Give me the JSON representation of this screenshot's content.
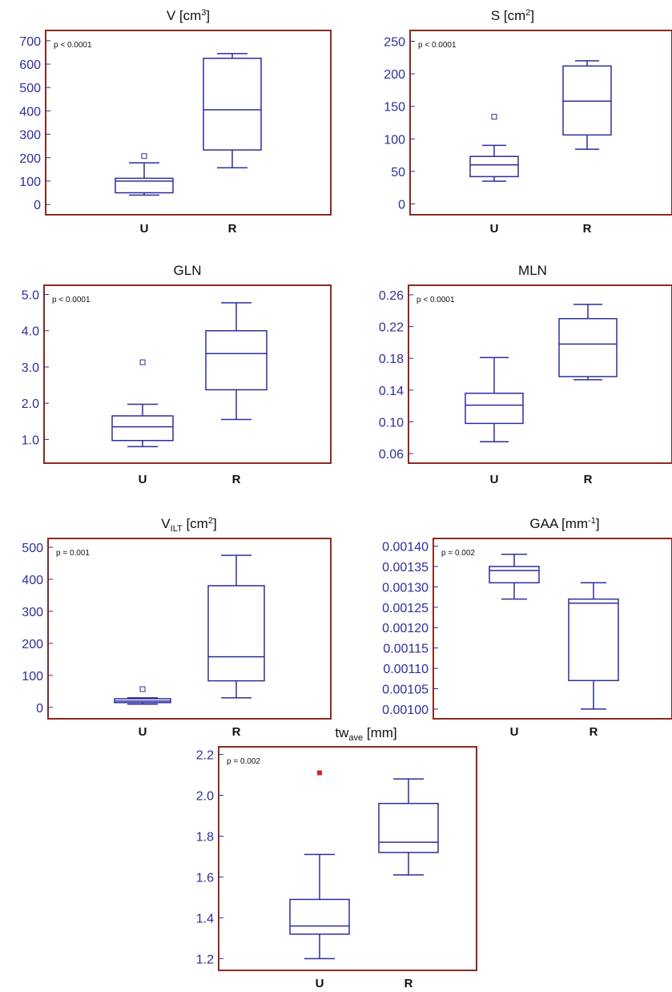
{
  "colors": {
    "frame": "#8b2a22",
    "box": "#2e2e9c",
    "axis_text": "#2e2e9c",
    "outlier_highlight": "#e02020"
  },
  "chart_data": [
    {
      "type": "box",
      "title": "V [cm³]",
      "title_main": "V [cm",
      "title_sup": "3",
      "title_tail": "]",
      "p_text": "p < 0.0001",
      "categories": [
        "U",
        "R"
      ],
      "ylim": [
        -20,
        720
      ],
      "yticks": [
        "0",
        "100",
        "200",
        "300",
        "400",
        "500",
        "600",
        "700"
      ],
      "ytick_values": [
        0,
        100,
        200,
        300,
        400,
        500,
        600,
        700
      ],
      "boxes": [
        {
          "category": "U",
          "min": 40,
          "q1": 50,
          "median": 100,
          "q3": 112,
          "max": 178,
          "outliers": [
            207
          ]
        },
        {
          "category": "R",
          "min": 157,
          "q1": 233,
          "median": 405,
          "q3": 625,
          "max": 645,
          "outliers": []
        }
      ]
    },
    {
      "type": "box",
      "title": "S [cm²]",
      "title_main": "S [cm",
      "title_sup": "2",
      "title_tail": "]",
      "p_text": "p < 0.0001",
      "categories": [
        "U",
        "R"
      ],
      "ylim": [
        -8,
        258
      ],
      "yticks": [
        "0",
        "50",
        "100",
        "150",
        "200",
        "250"
      ],
      "ytick_values": [
        0,
        50,
        100,
        150,
        200,
        250
      ],
      "boxes": [
        {
          "category": "U",
          "min": 35,
          "q1": 42,
          "median": 60,
          "q3": 73,
          "max": 90,
          "outliers": [
            134
          ]
        },
        {
          "category": "R",
          "min": 84,
          "q1": 106,
          "median": 158,
          "q3": 212,
          "max": 220,
          "outliers": []
        }
      ]
    },
    {
      "type": "box",
      "title": "GLN",
      "p_text": "p < 0.0001",
      "categories": [
        "U",
        "R"
      ],
      "ylim": [
        0.5,
        5.1
      ],
      "yticks": [
        "1.0",
        "2.0",
        "3.0",
        "4.0",
        "5.0"
      ],
      "ytick_values": [
        1.0,
        2.0,
        3.0,
        4.0,
        5.0
      ],
      "boxes": [
        {
          "category": "U",
          "min": 0.8,
          "q1": 0.97,
          "median": 1.35,
          "q3": 1.65,
          "max": 1.97,
          "outliers": [
            3.13
          ]
        },
        {
          "category": "R",
          "min": 1.55,
          "q1": 2.37,
          "median": 3.37,
          "q3": 4.0,
          "max": 4.77,
          "outliers": []
        }
      ]
    },
    {
      "type": "box",
      "title": "MLN",
      "p_text": "p < 0.0001",
      "categories": [
        "U",
        "R"
      ],
      "ylim": [
        0.055,
        0.265
      ],
      "yticks": [
        "0.06",
        "0.10",
        "0.14",
        "0.18",
        "0.22",
        "0.26"
      ],
      "ytick_values": [
        0.06,
        0.1,
        0.14,
        0.18,
        0.22,
        0.26
      ],
      "boxes": [
        {
          "category": "U",
          "min": 0.075,
          "q1": 0.098,
          "median": 0.121,
          "q3": 0.136,
          "max": 0.181,
          "outliers": []
        },
        {
          "category": "R",
          "min": 0.153,
          "q1": 0.157,
          "median": 0.198,
          "q3": 0.23,
          "max": 0.248,
          "outliers": []
        }
      ]
    },
    {
      "type": "box",
      "title": "VILT [cm²]",
      "title_main": "V",
      "title_sub": "ILT",
      "title_tail": " [cm",
      "title_sup": "2",
      "title_tail2": "]",
      "p_text": "p = 0.001",
      "categories": [
        "U",
        "R"
      ],
      "ylim": [
        -18,
        510
      ],
      "yticks": [
        "0",
        "100",
        "200",
        "300",
        "400",
        "500"
      ],
      "ytick_values": [
        0,
        100,
        200,
        300,
        400,
        500
      ],
      "boxes": [
        {
          "category": "U",
          "min": 10,
          "q1": 15,
          "median": 20,
          "q3": 27,
          "max": 30,
          "outliers": [
            57
          ]
        },
        {
          "category": "R",
          "min": 30,
          "q1": 83,
          "median": 158,
          "q3": 380,
          "max": 475,
          "outliers": []
        }
      ]
    },
    {
      "type": "box",
      "title": "GAA [mm⁻¹]",
      "title_main": "GAA [mm",
      "title_sup": "-1",
      "title_tail": "]",
      "p_text": "p = 0.002",
      "categories": [
        "U",
        "R"
      ],
      "ylim": [
        0.00099,
        0.001405
      ],
      "yticks": [
        "0.00100",
        "0.00105",
        "0.00110",
        "0.00115",
        "0.00120",
        "0.00125",
        "0.00130",
        "0.00135",
        "0.00140"
      ],
      "ytick_values": [
        0.001,
        0.00105,
        0.0011,
        0.00115,
        0.0012,
        0.00125,
        0.0013,
        0.00135,
        0.0014
      ],
      "boxes": [
        {
          "category": "U",
          "min": 0.00127,
          "q1": 0.00131,
          "median": 0.00134,
          "q3": 0.00135,
          "max": 0.00138,
          "outliers": []
        },
        {
          "category": "R",
          "min": 0.001,
          "q1": 0.00107,
          "median": 0.00126,
          "q3": 0.00127,
          "max": 0.00131,
          "outliers": []
        }
      ]
    },
    {
      "type": "box",
      "title": "twave [mm]",
      "title_main": "tw",
      "title_sub": "ave",
      "title_tail": " [mm]",
      "p_text": "p = 0.002",
      "categories": [
        "U",
        "R"
      ],
      "ylim": [
        1.17,
        2.21
      ],
      "yticks": [
        "1.2",
        "1.4",
        "1.6",
        "1.8",
        "2.0",
        "2.2"
      ],
      "ytick_values": [
        1.2,
        1.4,
        1.6,
        1.8,
        2.0,
        2.2
      ],
      "boxes": [
        {
          "category": "U",
          "min": 1.2,
          "q1": 1.32,
          "median": 1.36,
          "q3": 1.49,
          "max": 1.71,
          "outliers": [
            2.11
          ],
          "outlier_style": "filled-red"
        },
        {
          "category": "R",
          "min": 1.61,
          "q1": 1.72,
          "median": 1.77,
          "q3": 1.96,
          "max": 2.08,
          "outliers": []
        }
      ]
    }
  ]
}
